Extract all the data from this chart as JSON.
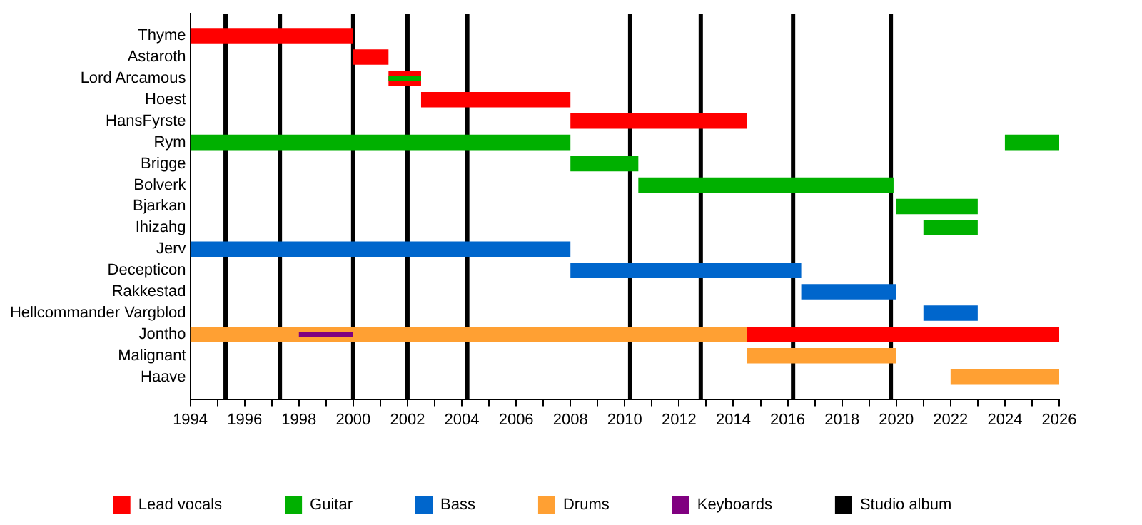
{
  "chart_data": {
    "type": "bar",
    "orientation": "horizontal",
    "legend": "bottom",
    "categories": [
      "Thyme",
      "Astaroth",
      "Lord Arcamous",
      "Hoest",
      "HansFyrste",
      "Rym",
      "Brigge",
      "Bolverk",
      "Bjarkan",
      "Ihizahg",
      "Jerv",
      "Decepticon",
      "Rakkestad",
      "Hellcommander Vargblod",
      "Jontho",
      "Malignant",
      "Haave"
    ],
    "series": [
      {
        "name": "Lead vocals",
        "color": "#ff0000",
        "values": [
          6,
          1.3,
          1.2,
          5.5,
          6.5,
          null,
          null,
          null,
          null,
          null,
          null,
          null,
          null,
          null,
          11.5,
          null,
          null
        ],
        "base": [
          1994,
          2000,
          2001.3,
          2002.5,
          2008,
          null,
          null,
          null,
          null,
          null,
          null,
          null,
          null,
          null,
          2014.5,
          null,
          null
        ]
      },
      {
        "name": "Guitar",
        "color": "#00b000",
        "values": [
          null,
          null,
          1.2,
          null,
          null,
          14,
          2.5,
          9.4,
          3,
          2,
          null,
          null,
          null,
          null,
          null,
          null,
          null
        ],
        "base": [
          null,
          null,
          2001.3,
          null,
          null,
          1994,
          2008,
          2010.5,
          2020,
          2021,
          null,
          null,
          null,
          null,
          null,
          null,
          null
        ]
      },
      {
        "color": "#00b000",
        "values": [
          null,
          null,
          null,
          null,
          null,
          2,
          null,
          null,
          null,
          null,
          null,
          null,
          null,
          null,
          null,
          null,
          null
        ],
        "base": [
          null,
          null,
          null,
          null,
          null,
          2024,
          null,
          null,
          null,
          null,
          null,
          null,
          null,
          null,
          null,
          null,
          null
        ]
      },
      {
        "name": "Bass",
        "color": "#0066cc",
        "values": [
          null,
          null,
          null,
          null,
          null,
          null,
          null,
          null,
          null,
          null,
          14,
          8.5,
          3.5,
          2,
          null,
          null,
          null
        ],
        "base": [
          null,
          null,
          null,
          null,
          null,
          null,
          null,
          null,
          null,
          null,
          1994,
          2008,
          2016.5,
          2021,
          null,
          null,
          null
        ]
      },
      {
        "name": "Drums",
        "color": "#ffa033",
        "values": [
          null,
          null,
          null,
          null,
          null,
          null,
          null,
          null,
          null,
          null,
          null,
          null,
          null,
          null,
          20.5,
          5.5,
          4
        ],
        "base": [
          null,
          null,
          null,
          null,
          null,
          null,
          null,
          null,
          null,
          null,
          null,
          null,
          null,
          null,
          1994,
          2014.5,
          2022
        ]
      },
      {
        "name": "Keyboards",
        "color": "#800080",
        "values": [
          null,
          null,
          null,
          null,
          null,
          null,
          null,
          null,
          null,
          null,
          null,
          null,
          null,
          null,
          2,
          null,
          null
        ],
        "base": [
          null,
          null,
          null,
          null,
          null,
          null,
          null,
          null,
          null,
          null,
          null,
          null,
          null,
          null,
          1998,
          null,
          null
        ]
      }
    ],
    "xlim": [
      1994,
      2026
    ],
    "xticks": [
      1994,
      {
        "value": 1995,
        "label": null
      },
      1996,
      {
        "value": 1997,
        "label": null
      },
      1998,
      {
        "value": 1999,
        "label": null
      },
      2000,
      {
        "value": 2001,
        "label": null
      },
      2002,
      {
        "value": 2003,
        "label": null
      },
      2004,
      {
        "value": 2005,
        "label": null
      },
      2006,
      {
        "value": 2007,
        "label": null
      },
      2008,
      {
        "value": 2009,
        "label": null
      },
      2010,
      {
        "value": 2011,
        "label": null
      },
      2012,
      {
        "value": 2013,
        "label": null
      },
      2014,
      {
        "value": 2015,
        "label": null
      },
      2016,
      {
        "value": 2017,
        "label": null
      },
      2018,
      {
        "value": 2019,
        "label": null
      },
      2020,
      {
        "value": 2021,
        "label": null
      },
      2022,
      {
        "value": 2023,
        "label": null
      },
      2024,
      {
        "value": 2025,
        "label": null
      },
      2026
    ],
    "ref_lines": [
      {
        "axis": "x",
        "value": 1995.3,
        "color": "#000000",
        "label": "Studio album"
      },
      {
        "axis": "x",
        "value": 1997.3,
        "color": "#000000"
      },
      {
        "axis": "x",
        "value": 2000,
        "color": "#000000"
      },
      {
        "axis": "x",
        "value": 2002,
        "color": "#000000"
      },
      {
        "axis": "x",
        "value": 2004.2,
        "color": "#000000"
      },
      {
        "axis": "x",
        "value": 2010.2,
        "color": "#000000"
      },
      {
        "axis": "x",
        "value": 2012.8,
        "color": "#000000"
      },
      {
        "axis": "x",
        "value": 2016.2,
        "color": "#000000"
      },
      {
        "axis": "x",
        "value": 2019.8,
        "color": "#000000"
      }
    ]
  }
}
